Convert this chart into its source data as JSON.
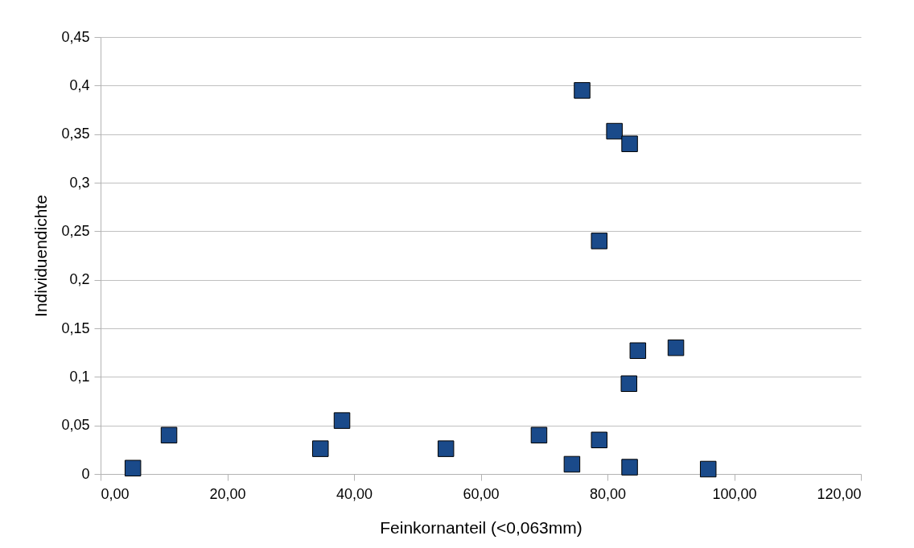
{
  "chart_data": {
    "type": "scatter",
    "xlabel": "Feinkornanteil (<0,063mm)",
    "ylabel": "Individuendichte",
    "x": [
      5.1,
      10.8,
      34.7,
      38.1,
      54.5,
      76.0,
      81.1,
      83.5,
      78.7,
      84.8,
      90.8,
      83.4,
      69.2,
      78.7,
      74.4,
      83.5,
      95.9
    ],
    "series": [
      {
        "color": "#1a4a8a",
        "values": [
          0.006,
          0.04,
          0.026,
          0.055,
          0.026,
          0.395,
          0.353,
          0.34,
          0.24,
          0.127,
          0.13,
          0.093,
          0.04,
          0.035,
          0.01,
          0.007,
          0.005
        ]
      }
    ],
    "xlim": [
      0,
      120
    ],
    "ylim": [
      0,
      0.45
    ],
    "xticks": [
      {
        "value": 0,
        "label": "0,00"
      },
      {
        "value": 20,
        "label": "20,00"
      },
      {
        "value": 40,
        "label": "40,00"
      },
      {
        "value": 60,
        "label": "60,00"
      },
      {
        "value": 80,
        "label": "80,00"
      },
      {
        "value": 100,
        "label": "100,00"
      },
      {
        "value": 120,
        "label": "120,00"
      }
    ],
    "yticks": [
      0,
      {
        "value": 0.05,
        "label": "0,05"
      },
      {
        "value": 0.1,
        "label": "0,1"
      },
      {
        "value": 0.15,
        "label": "0,15"
      },
      {
        "value": 0.2,
        "label": "0,2"
      },
      {
        "value": 0.25,
        "label": "0,25"
      },
      {
        "value": 0.3,
        "label": "0,3"
      },
      {
        "value": 0.35,
        "label": "0,35"
      },
      {
        "value": 0.4,
        "label": "0,4"
      },
      {
        "value": 0.45,
        "label": "0,45"
      }
    ],
    "grid": "y",
    "marker": "square",
    "legend": false
  }
}
